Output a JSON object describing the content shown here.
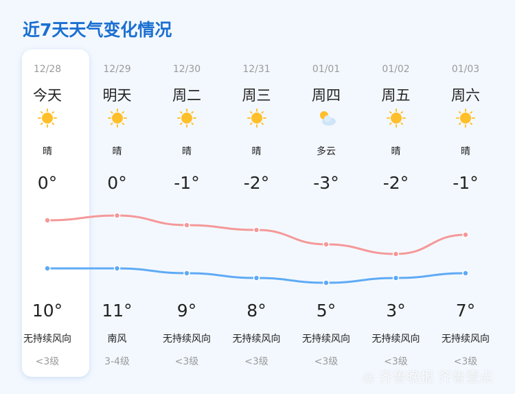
{
  "title": "近7天天气变化情况",
  "days": [
    {
      "date": "12/28",
      "day": "今天",
      "icon": "sunny-icon",
      "condition": "晴",
      "low": "0°",
      "high": "10°",
      "wind": "无持续风向",
      "level": "<3级"
    },
    {
      "date": "12/29",
      "day": "明天",
      "icon": "sunny-icon",
      "condition": "晴",
      "low": "0°",
      "high": "11°",
      "wind": "南风",
      "level": "3-4级"
    },
    {
      "date": "12/30",
      "day": "周二",
      "icon": "sunny-icon",
      "condition": "晴",
      "low": "-1°",
      "high": "9°",
      "wind": "无持续风向",
      "level": "<3级"
    },
    {
      "date": "12/31",
      "day": "周三",
      "icon": "sunny-icon",
      "condition": "晴",
      "low": "-2°",
      "high": "8°",
      "wind": "无持续风向",
      "level": "<3级"
    },
    {
      "date": "01/01",
      "day": "周四",
      "icon": "partly-cloudy-icon",
      "condition": "多云",
      "low": "-3°",
      "high": "5°",
      "wind": "无持续风向",
      "level": "<3级"
    },
    {
      "date": "01/02",
      "day": "周五",
      "icon": "sunny-icon",
      "condition": "晴",
      "low": "-2°",
      "high": "3°",
      "wind": "无持续风向",
      "level": "<3级"
    },
    {
      "date": "01/03",
      "day": "周六",
      "icon": "sunny-icon",
      "condition": "晴",
      "low": "-1°",
      "high": "7°",
      "wind": "无持续风向",
      "level": "<3级"
    }
  ],
  "chart_data": {
    "type": "line",
    "categories": [
      "12/28",
      "12/29",
      "12/30",
      "12/31",
      "01/01",
      "01/02",
      "01/03"
    ],
    "series": [
      {
        "values": [
          10,
          11,
          9,
          8,
          5,
          3,
          7
        ],
        "color": "#f59898"
      },
      {
        "values": [
          0,
          0,
          -1,
          -2,
          -3,
          -2,
          -1
        ],
        "color": "#5eaaf5"
      }
    ]
  },
  "watermark": "齐鲁晚报 齐鲁壹点",
  "colors": {
    "title": "#1a6fd1",
    "sun": "#ffc22e"
  }
}
